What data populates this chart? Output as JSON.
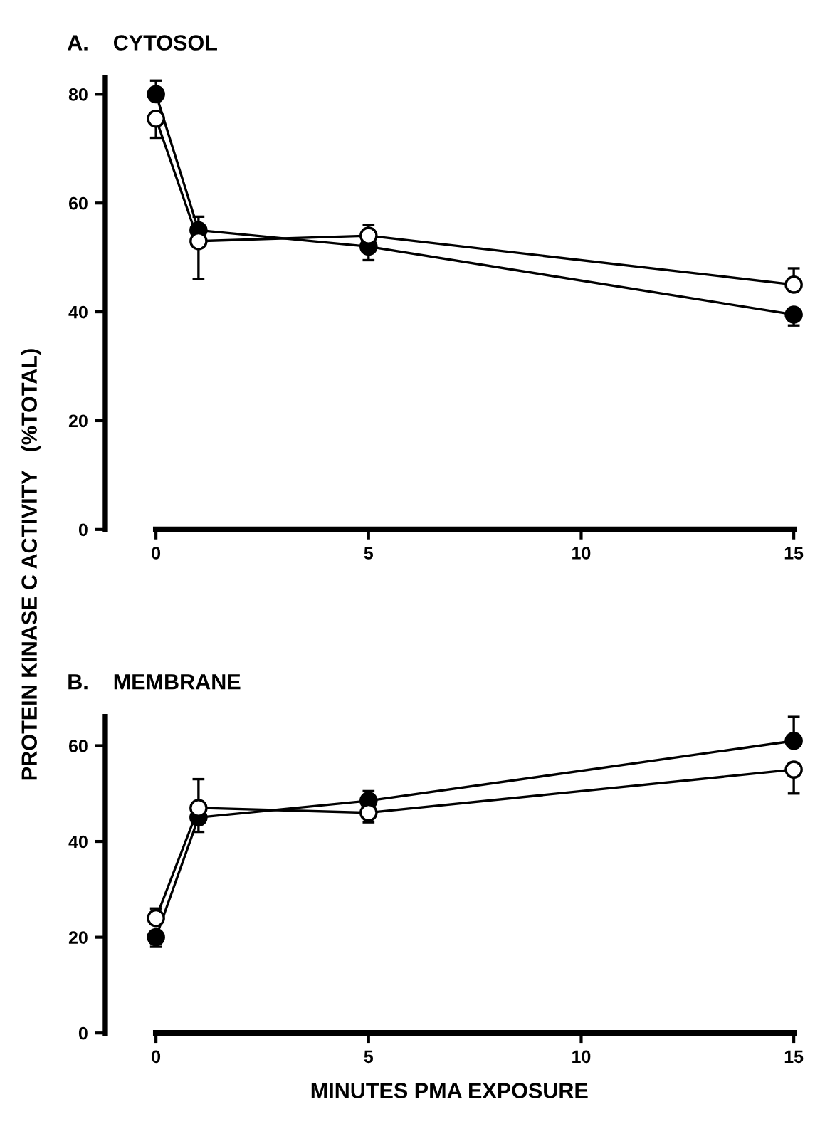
{
  "chart_data": [
    {
      "type": "line",
      "title": "A.    CYTOSOL",
      "ylabel": "PROTEIN KINASE C ACTIVITY   (%TOTAL)",
      "x": [
        0,
        1,
        5,
        15
      ],
      "xlim": [
        -1.2,
        15
      ],
      "xticks": [
        0,
        5,
        10,
        15
      ],
      "ylim": [
        0,
        83
      ],
      "yticks": [
        0,
        20,
        40,
        60,
        80
      ],
      "marker": "circle",
      "line_style": "solid",
      "legend": false,
      "grid": false,
      "series": [
        {
          "color": "#000000",
          "values": [
            80,
            55,
            52,
            39.5
          ],
          "errors": [
            [
              80,
              82.5
            ],
            [
              55,
              57.5
            ],
            [
              49.5,
              52
            ],
            [
              37.5,
              39.5
            ]
          ]
        },
        {
          "color": "#ffffff",
          "values": [
            75.5,
            53,
            54,
            45
          ],
          "errors": [
            [
              72,
              75.5
            ],
            [
              46,
              53
            ],
            [
              54,
              56
            ],
            [
              45,
              48
            ]
          ]
        }
      ]
    },
    {
      "type": "line",
      "title": "B.    MEMBRANE",
      "xlabel": "MINUTES PMA EXPOSURE",
      "x": [
        0,
        1,
        5,
        15
      ],
      "xlim": [
        -1.2,
        15
      ],
      "xticks": [
        0,
        5,
        10,
        15
      ],
      "ylim": [
        0,
        66
      ],
      "yticks": [
        0,
        20,
        40,
        60
      ],
      "marker": "circle",
      "line_style": "solid",
      "legend": false,
      "grid": false,
      "series": [
        {
          "color": "#000000",
          "values": [
            20,
            45,
            48.5,
            61
          ],
          "errors": [
            [
              18,
              20
            ],
            [
              42,
              45
            ],
            [
              48.5,
              50.5
            ],
            [
              61,
              66
            ]
          ]
        },
        {
          "color": "#ffffff",
          "values": [
            24,
            47,
            46,
            55
          ],
          "errors": [
            [
              24,
              26
            ],
            [
              47,
              53
            ],
            [
              44,
              46
            ],
            [
              50,
              55
            ]
          ]
        }
      ]
    }
  ]
}
